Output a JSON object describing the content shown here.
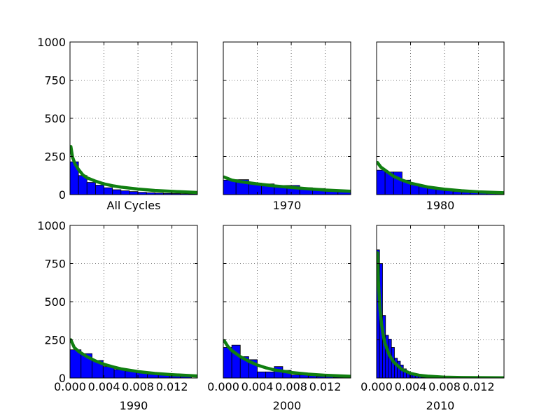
{
  "figure": {
    "layout": "2x3 grid of histogram panels with fitted curves"
  },
  "colors": {
    "bar_fill": "#0000ff",
    "bar_edge": "#000000",
    "fit_line": "#107f10",
    "grid": "#000000",
    "background": "#ffffff"
  },
  "chart_data": [
    {
      "type": "bar",
      "label": "All Cycles",
      "bin_width": 0.001,
      "bin_centers": [
        0.0005,
        0.0015,
        0.0025,
        0.0035,
        0.0045,
        0.0055,
        0.0065,
        0.0075,
        0.0085,
        0.0095,
        0.0105,
        0.0115,
        0.0125,
        0.0135,
        0.0145
      ],
      "values": [
        215,
        125,
        80,
        62,
        45,
        32,
        25,
        20,
        15,
        12,
        10,
        8,
        7,
        6,
        5
      ],
      "fit_curve": {
        "x": [
          0.0001,
          0.0003,
          0.0006,
          0.001,
          0.0015,
          0.002,
          0.003,
          0.004,
          0.005,
          0.006,
          0.008,
          0.01,
          0.012,
          0.015
        ],
        "y": [
          315,
          245,
          200,
          165,
          130,
          110,
          88,
          70,
          58,
          49,
          36,
          27,
          21,
          14
        ]
      },
      "xlim": [
        0,
        0.015
      ],
      "ylim": [
        0,
        1000
      ],
      "yticks": [
        "0",
        "250",
        "500",
        "750",
        "1000"
      ],
      "xticks": [],
      "grid": true
    },
    {
      "type": "bar",
      "label": "1970",
      "bin_width": 0.0015,
      "bin_centers": [
        0.00075,
        0.00225,
        0.00375,
        0.00525,
        0.00675,
        0.00825,
        0.00975,
        0.01125,
        0.01275,
        0.01425
      ],
      "values": [
        95,
        98,
        75,
        70,
        60,
        60,
        45,
        40,
        30,
        25
      ],
      "fit_curve": {
        "x": [
          0.0001,
          0.001,
          0.002,
          0.004,
          0.006,
          0.008,
          0.01,
          0.012,
          0.015
        ],
        "y": [
          115,
          95,
          85,
          70,
          57,
          47,
          38,
          30,
          22
        ]
      },
      "xlim": [
        0,
        0.015
      ],
      "ylim": [
        0,
        1000
      ],
      "yticks": [],
      "xticks": [],
      "grid": true
    },
    {
      "type": "bar",
      "label": "1980",
      "bin_width": 0.001,
      "bin_centers": [
        0.0005,
        0.0015,
        0.0025,
        0.0035,
        0.0045,
        0.0055,
        0.0065,
        0.0075,
        0.0085,
        0.0095,
        0.0105,
        0.0115,
        0.0125,
        0.0135,
        0.0145
      ],
      "values": [
        160,
        148,
        148,
        95,
        70,
        55,
        45,
        35,
        25,
        20,
        15,
        12,
        10,
        8,
        6
      ],
      "fit_curve": {
        "x": [
          0.0001,
          0.0005,
          0.001,
          0.002,
          0.003,
          0.004,
          0.006,
          0.008,
          0.01,
          0.012,
          0.015
        ],
        "y": [
          210,
          180,
          160,
          120,
          95,
          75,
          50,
          35,
          25,
          18,
          12
        ]
      },
      "xlim": [
        0,
        0.015
      ],
      "ylim": [
        0,
        1000
      ],
      "yticks": [],
      "xticks": [],
      "grid": true
    },
    {
      "type": "bar",
      "label": "1990",
      "bin_width": 0.0013,
      "bin_centers": [
        0.00065,
        0.00195,
        0.00325,
        0.00455,
        0.00585,
        0.00715,
        0.00845,
        0.00975,
        0.01105,
        0.01235,
        0.01365
      ],
      "values": [
        185,
        160,
        115,
        75,
        55,
        45,
        35,
        25,
        20,
        15,
        10
      ],
      "fit_curve": {
        "x": [
          0.0001,
          0.0005,
          0.001,
          0.002,
          0.003,
          0.004,
          0.005,
          0.006,
          0.008,
          0.01,
          0.012,
          0.015
        ],
        "y": [
          250,
          200,
          175,
          140,
          112,
          90,
          74,
          60,
          42,
          30,
          22,
          13
        ]
      },
      "xlim": [
        0,
        0.015
      ],
      "ylim": [
        0,
        1000
      ],
      "yticks": [
        "0",
        "250",
        "500",
        "750",
        "1000"
      ],
      "xticks": [
        "0.000",
        "0.004",
        "0.008",
        "0.012"
      ],
      "xtick_values": [
        0,
        0.004,
        0.008,
        0.012
      ],
      "grid": true
    },
    {
      "type": "bar",
      "label": "2000",
      "bin_width": 0.001,
      "bin_centers": [
        0.0005,
        0.0015,
        0.0025,
        0.0035,
        0.0045,
        0.0055,
        0.0065,
        0.0075,
        0.0085,
        0.0095,
        0.0105,
        0.0115,
        0.0125,
        0.0135,
        0.0145
      ],
      "values": [
        200,
        215,
        140,
        120,
        40,
        40,
        75,
        50,
        20,
        20,
        15,
        10,
        10,
        5,
        5
      ],
      "fit_curve": {
        "x": [
          0.0001,
          0.0005,
          0.001,
          0.002,
          0.003,
          0.004,
          0.005,
          0.006,
          0.008,
          0.01,
          0.012,
          0.015
        ],
        "y": [
          245,
          210,
          180,
          140,
          110,
          85,
          67,
          53,
          36,
          25,
          18,
          11
        ]
      },
      "xlim": [
        0,
        0.015
      ],
      "ylim": [
        0,
        1000
      ],
      "yticks": [],
      "xticks": [
        "0.000",
        "0.004",
        "0.008",
        "0.012"
      ],
      "xtick_values": [
        0,
        0.004,
        0.008,
        0.012
      ],
      "grid": true
    },
    {
      "type": "bar",
      "label": "2010",
      "bin_width": 0.00035,
      "bin_centers": [
        0.000175,
        0.000525,
        0.000875,
        0.001225,
        0.001575,
        0.001925,
        0.002275,
        0.002625,
        0.002975,
        0.003325,
        0.003675,
        0.004025,
        0.004375,
        0.004725,
        0.005075,
        0.005425,
        0.005775,
        0.006125
      ],
      "values": [
        840,
        750,
        410,
        280,
        255,
        200,
        130,
        110,
        85,
        60,
        40,
        30,
        20,
        15,
        10,
        5,
        5,
        3
      ],
      "fit_curve": {
        "x": [
          0.0001,
          0.0002,
          0.0004,
          0.0006,
          0.0008,
          0.001,
          0.0015,
          0.002,
          0.003,
          0.004,
          0.005,
          0.006,
          0.008,
          0.01,
          0.015
        ],
        "y": [
          820,
          640,
          450,
          345,
          275,
          225,
          150,
          105,
          55,
          30,
          18,
          12,
          5,
          3,
          1
        ]
      },
      "xlim": [
        0,
        0.015
      ],
      "ylim": [
        0,
        1000
      ],
      "yticks": [],
      "xticks": [
        "0.000",
        "0.004",
        "0.008",
        "0.012"
      ],
      "xtick_values": [
        0,
        0.004,
        0.008,
        0.012
      ],
      "grid": true
    }
  ]
}
